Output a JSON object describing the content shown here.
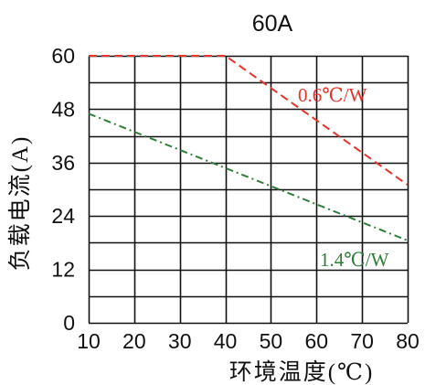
{
  "chart_data": {
    "type": "line",
    "title": "60A",
    "xlabel": "环境温度(℃)",
    "ylabel": "负载电流(A)",
    "xlim": [
      10,
      80
    ],
    "ylim": [
      0,
      60
    ],
    "x_ticks": [
      "10",
      "20",
      "30",
      "40",
      "50",
      "60",
      "70",
      "80"
    ],
    "y_ticks": [
      "0",
      "12",
      "24",
      "36",
      "48",
      "60"
    ],
    "x_tick_values": [
      10,
      20,
      30,
      40,
      50,
      60,
      70,
      80
    ],
    "y_tick_values": [
      0,
      12,
      24,
      36,
      48,
      60
    ],
    "grid": true,
    "series": [
      {
        "name": "0.6℃/W",
        "color": "#e8332c",
        "dash": "dashed",
        "x": [
          10,
          40,
          80
        ],
        "y": [
          60,
          60,
          31
        ]
      },
      {
        "name": "1.4℃/W",
        "color": "#2f7d3a",
        "dash": "dash-dot",
        "x": [
          10,
          80
        ],
        "y": [
          47,
          18.5
        ]
      }
    ]
  }
}
